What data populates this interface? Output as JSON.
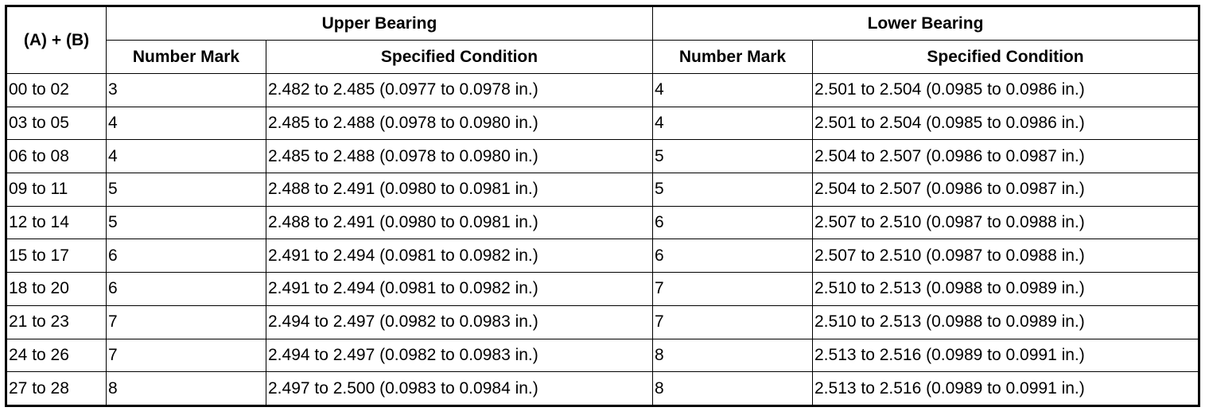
{
  "headers": {
    "sum": "(A) + (B)",
    "upper": "Upper Bearing",
    "lower": "Lower Bearing",
    "number_mark": "Number Mark",
    "specified_condition": "Specified Condition"
  },
  "rows": [
    {
      "range": "00 to 02",
      "upper_mark": "3",
      "upper_spec": "2.482 to 2.485 (0.0977 to 0.0978 in.)",
      "lower_mark": "4",
      "lower_spec": "2.501 to 2.504 (0.0985 to 0.0986 in.)"
    },
    {
      "range": "03 to 05",
      "upper_mark": "4",
      "upper_spec": "2.485 to 2.488 (0.0978 to 0.0980 in.)",
      "lower_mark": "4",
      "lower_spec": "2.501 to 2.504 (0.0985 to 0.0986 in.)"
    },
    {
      "range": "06 to 08",
      "upper_mark": "4",
      "upper_spec": "2.485 to 2.488 (0.0978 to 0.0980 in.)",
      "lower_mark": "5",
      "lower_spec": "2.504 to 2.507 (0.0986 to 0.0987 in.)"
    },
    {
      "range": "09 to 11",
      "upper_mark": "5",
      "upper_spec": "2.488 to 2.491 (0.0980 to 0.0981 in.)",
      "lower_mark": "5",
      "lower_spec": "2.504 to 2.507 (0.0986 to 0.0987 in.)"
    },
    {
      "range": "12 to 14",
      "upper_mark": "5",
      "upper_spec": "2.488 to 2.491 (0.0980 to 0.0981 in.)",
      "lower_mark": "6",
      "lower_spec": "2.507 to 2.510 (0.0987 to 0.0988 in.)"
    },
    {
      "range": "15 to 17",
      "upper_mark": "6",
      "upper_spec": "2.491 to 2.494 (0.0981 to 0.0982 in.)",
      "lower_mark": "6",
      "lower_spec": "2.507 to 2.510 (0.0987 to 0.0988 in.)"
    },
    {
      "range": "18 to 20",
      "upper_mark": "6",
      "upper_spec": "2.491 to 2.494 (0.0981 to 0.0982 in.)",
      "lower_mark": "7",
      "lower_spec": "2.510 to 2.513 (0.0988 to 0.0989 in.)"
    },
    {
      "range": "21 to 23",
      "upper_mark": "7",
      "upper_spec": "2.494 to 2.497 (0.0982 to 0.0983 in.)",
      "lower_mark": "7",
      "lower_spec": "2.510 to 2.513 (0.0988 to 0.0989 in.)"
    },
    {
      "range": "24 to 26",
      "upper_mark": "7",
      "upper_spec": "2.494 to 2.497 (0.0982 to 0.0983 in.)",
      "lower_mark": "8",
      "lower_spec": "2.513 to 2.516 (0.0989 to 0.0991 in.)"
    },
    {
      "range": "27 to 28",
      "upper_mark": "8",
      "upper_spec": "2.497 to 2.500 (0.0983 to 0.0984 in.)",
      "lower_mark": "8",
      "lower_spec": "2.513 to 2.516 (0.0989 to 0.0991 in.)"
    }
  ]
}
